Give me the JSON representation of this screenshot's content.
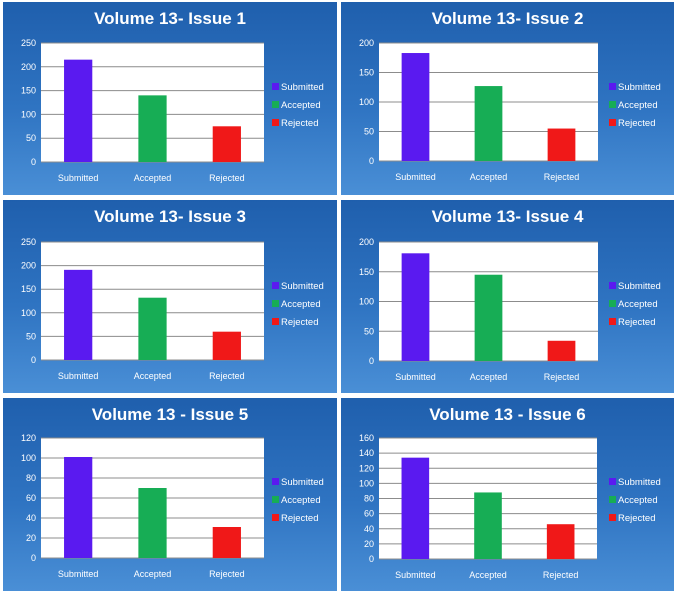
{
  "colors": {
    "submitted": "#5a1af0",
    "accepted": "#17ad55",
    "rejected": "#f01818"
  },
  "chart_data": [
    {
      "type": "bar",
      "title": "Volume 13- Issue 1",
      "categories": [
        "Submitted",
        "Accepted",
        "Rejected"
      ],
      "values": [
        215,
        140,
        75
      ],
      "ylim": [
        0,
        250
      ],
      "yticks": [
        0,
        50,
        100,
        150,
        200,
        250
      ],
      "legend": [
        "Submitted",
        "Accepted",
        "Rejected"
      ]
    },
    {
      "type": "bar",
      "title": "Volume 13- Issue 2",
      "categories": [
        "Submitted",
        "Accepted",
        "Rejected"
      ],
      "values": [
        183,
        127,
        55
      ],
      "ylim": [
        0,
        200
      ],
      "yticks": [
        0,
        50,
        100,
        150,
        200
      ],
      "legend": [
        "Submitted",
        "Accepted",
        "Rejected"
      ]
    },
    {
      "type": "bar",
      "title": "Volume 13- Issue 3",
      "categories": [
        "Submitted",
        "Accepted",
        "Rejected"
      ],
      "values": [
        191,
        132,
        60
      ],
      "ylim": [
        0,
        250
      ],
      "yticks": [
        0,
        50,
        100,
        150,
        200,
        250
      ],
      "legend": [
        "Submitted",
        "Accepted",
        "Rejected"
      ]
    },
    {
      "type": "bar",
      "title": "Volume 13- Issue 4",
      "categories": [
        "Submitted",
        "Accepted",
        "Rejected"
      ],
      "values": [
        181,
        145,
        34
      ],
      "ylim": [
        0,
        200
      ],
      "yticks": [
        0,
        50,
        100,
        150,
        200
      ],
      "legend": [
        "Submitted",
        "Accepted",
        "Rejected"
      ]
    },
    {
      "type": "bar",
      "title": "Volume 13 - Issue 5",
      "categories": [
        "Submitted",
        "Accepted",
        "Rejected"
      ],
      "values": [
        101,
        70,
        31
      ],
      "ylim": [
        0,
        120
      ],
      "yticks": [
        0,
        20,
        40,
        60,
        80,
        100,
        120
      ],
      "legend": [
        "Submitted",
        "Accepted",
        "Rejected"
      ]
    },
    {
      "type": "bar",
      "title": "Volume 13 - Issue 6",
      "categories": [
        "Submitted",
        "Accepted",
        "Rejected"
      ],
      "values": [
        134,
        88,
        46
      ],
      "ylim": [
        0,
        160
      ],
      "yticks": [
        0,
        20,
        40,
        60,
        80,
        100,
        120,
        140,
        160
      ],
      "legend": [
        "Submitted",
        "Accepted",
        "Rejected"
      ]
    }
  ]
}
